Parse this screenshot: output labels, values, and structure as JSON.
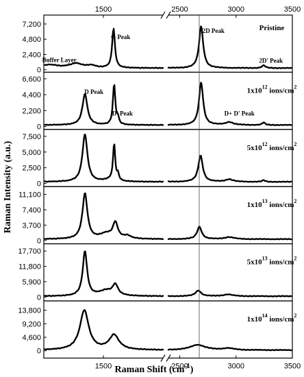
{
  "chart_data": {
    "type": "line",
    "title": "",
    "xlabel_parts": [
      "Raman Shift (cm",
      "-1",
      ")"
    ],
    "ylabel": "Raman Intensity (a.u.)",
    "x_ticks_top": [
      "1500",
      "2500",
      "3000",
      "3500"
    ],
    "x_ticks_bottom": [
      "1500",
      "2500",
      "3000",
      "3500"
    ],
    "x_axis_break": {
      "after": 2000,
      "before": 2400
    },
    "xlim": [
      1000,
      3500
    ],
    "panels": [
      {
        "name_parts": [
          "Pristine"
        ],
        "y_ticks": [
          "0",
          "2,400",
          "4,800",
          "7,200"
        ],
        "ylim": [
          -400,
          8600
        ],
        "annotations": [
          {
            "text": "Buffer Layer",
            "x": 1130,
            "y": 1200
          },
          {
            "text": "G Peak",
            "x": 1645,
            "y": 4800
          },
          {
            "text": "2D Peak",
            "x": 2800,
            "y": 5800
          },
          {
            "text": "2D' Peak",
            "x": 3310,
            "y": 1100
          }
        ],
        "peaks": [
          {
            "x": 1270,
            "h": 700,
            "w": 70
          },
          {
            "x": 1400,
            "h": 350,
            "w": 40
          },
          {
            "x": 1585,
            "h": 6200,
            "w": 14
          },
          {
            "x": 2690,
            "h": 6600,
            "w": 22
          },
          {
            "x": 3245,
            "h": 420,
            "w": 18
          }
        ],
        "baseline": 250
      },
      {
        "name_parts": [
          "1x10",
          "12",
          " ions/cm",
          "2"
        ],
        "y_ticks": [
          "0",
          "2,200",
          "4,400",
          "6,600"
        ],
        "ylim": [
          -400,
          7500
        ],
        "annotations": [
          {
            "text": "D Peak",
            "x": 1420,
            "y": 4500
          },
          {
            "text": "D' Peak",
            "x": 1660,
            "y": 1500
          },
          {
            "text": "D+ D' Peak",
            "x": 3030,
            "y": 1500
          }
        ],
        "peaks": [
          {
            "x": 1345,
            "h": 4300,
            "w": 25
          },
          {
            "x": 1590,
            "h": 5600,
            "w": 12
          },
          {
            "x": 1622,
            "h": 900,
            "w": 10
          },
          {
            "x": 2690,
            "h": 5900,
            "w": 22
          },
          {
            "x": 2940,
            "h": 400,
            "w": 40
          },
          {
            "x": 3245,
            "h": 350,
            "w": 15
          }
        ],
        "baseline": 200
      },
      {
        "name_parts": [
          "5x10",
          "12",
          " ions/cm",
          "2"
        ],
        "y_ticks": [
          "0",
          "2,500",
          "5,000",
          "7,500"
        ],
        "ylim": [
          -500,
          8600
        ],
        "annotations": [],
        "peaks": [
          {
            "x": 1345,
            "h": 7600,
            "w": 25
          },
          {
            "x": 1590,
            "h": 5800,
            "w": 11
          },
          {
            "x": 1550,
            "h": 300,
            "w": 60
          },
          {
            "x": 1622,
            "h": 1000,
            "w": 10
          },
          {
            "x": 2685,
            "h": 4200,
            "w": 24
          },
          {
            "x": 2940,
            "h": 400,
            "w": 40
          },
          {
            "x": 3245,
            "h": 250,
            "w": 15
          }
        ],
        "baseline": 250
      },
      {
        "name_parts": [
          "1x10",
          "13",
          " ions/cm",
          "2"
        ],
        "y_ticks": [
          "0",
          "3,700",
          "7,400",
          "11,100"
        ],
        "ylim": [
          -800,
          13000
        ],
        "annotations": [],
        "peaks": [
          {
            "x": 1345,
            "h": 11000,
            "w": 25
          },
          {
            "x": 1520,
            "h": 1200,
            "w": 60
          },
          {
            "x": 1600,
            "h": 3800,
            "w": 25
          },
          {
            "x": 1700,
            "h": 700,
            "w": 40
          },
          {
            "x": 2675,
            "h": 3000,
            "w": 25
          },
          {
            "x": 2940,
            "h": 500,
            "w": 50
          }
        ],
        "baseline": 300
      },
      {
        "name_parts": [
          "5x10",
          "13",
          " ions/cm",
          "2"
        ],
        "y_ticks": [
          "0",
          "5,900",
          "11,800",
          "17,700"
        ],
        "ylim": [
          -1500,
          20500
        ],
        "annotations": [],
        "peaks": [
          {
            "x": 1345,
            "h": 17200,
            "w": 22
          },
          {
            "x": 1520,
            "h": 2000,
            "w": 70
          },
          {
            "x": 1600,
            "h": 4000,
            "w": 28
          },
          {
            "x": 2665,
            "h": 2200,
            "w": 30
          },
          {
            "x": 2930,
            "h": 700,
            "w": 50
          }
        ],
        "baseline": 300
      },
      {
        "name_parts": [
          "1x10",
          "14",
          " ions/cm",
          "2"
        ],
        "y_ticks": [
          "0",
          "4,600",
          "9,200",
          "13,800"
        ],
        "ylim": [
          -2500,
          17000
        ],
        "annotations": [],
        "peaks": [
          {
            "x": 1340,
            "h": 13500,
            "w": 45
          },
          {
            "x": 1590,
            "h": 5000,
            "w": 50
          },
          {
            "x": 2660,
            "h": 1800,
            "w": 80
          },
          {
            "x": 2930,
            "h": 600,
            "w": 60
          }
        ],
        "baseline": 200
      }
    ]
  }
}
